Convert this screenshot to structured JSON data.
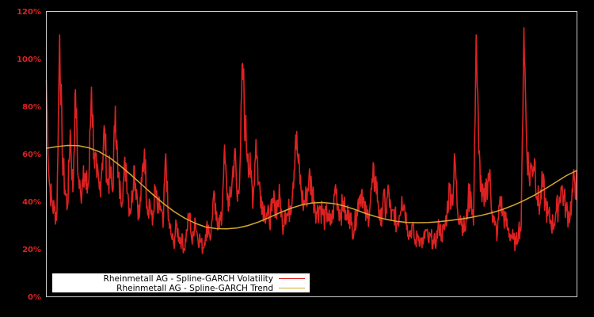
{
  "chart_data": {
    "type": "line",
    "title": "",
    "xlabel": "",
    "ylabel": "",
    "ylim": [
      0,
      120
    ],
    "y_ticks": [
      "0%",
      "20%",
      "40%",
      "60%",
      "80%",
      "100%",
      "120%"
    ],
    "grid": false,
    "legend_position": "lower left",
    "colors": {
      "background": "#000000",
      "axis_frame": "#cccccc",
      "tick_label": "#dd2222",
      "volatility": "#dd2222",
      "trend": "#d4a830",
      "legend_bg": "#ffffff"
    },
    "series": [
      {
        "name": "Rheinmetall AG - Spline-GARCH Volatility",
        "x_frac": [
          0,
          0.005,
          0.01,
          0.015,
          0.02,
          0.025,
          0.03,
          0.035,
          0.04,
          0.045,
          0.05,
          0.055,
          0.06,
          0.065,
          0.07,
          0.075,
          0.08,
          0.085,
          0.09,
          0.095,
          0.1,
          0.105,
          0.11,
          0.115,
          0.12,
          0.125,
          0.13,
          0.135,
          0.14,
          0.145,
          0.15,
          0.155,
          0.16,
          0.165,
          0.17,
          0.175,
          0.18,
          0.185,
          0.19,
          0.195,
          0.2,
          0.205,
          0.21,
          0.215,
          0.22,
          0.225,
          0.23,
          0.235,
          0.24,
          0.245,
          0.25,
          0.255,
          0.26,
          0.265,
          0.27,
          0.275,
          0.28,
          0.285,
          0.29,
          0.295,
          0.3,
          0.305,
          0.31,
          0.315,
          0.32,
          0.325,
          0.33,
          0.335,
          0.34,
          0.345,
          0.35,
          0.355,
          0.36,
          0.365,
          0.37,
          0.375,
          0.38,
          0.385,
          0.39,
          0.395,
          0.4,
          0.405,
          0.41,
          0.415,
          0.42,
          0.425,
          0.43,
          0.435,
          0.44,
          0.445,
          0.45,
          0.455,
          0.46,
          0.465,
          0.47,
          0.475,
          0.48,
          0.485,
          0.49,
          0.495,
          0.5,
          0.505,
          0.51,
          0.515,
          0.52,
          0.525,
          0.53,
          0.535,
          0.54,
          0.545,
          0.55,
          0.555,
          0.56,
          0.565,
          0.57,
          0.575,
          0.58,
          0.585,
          0.59,
          0.595,
          0.6,
          0.605,
          0.61,
          0.615,
          0.62,
          0.625,
          0.63,
          0.635,
          0.64,
          0.645,
          0.65,
          0.655,
          0.66,
          0.665,
          0.67,
          0.675,
          0.68,
          0.685,
          0.69,
          0.695,
          0.7,
          0.705,
          0.71,
          0.715,
          0.72,
          0.725,
          0.73,
          0.735,
          0.74,
          0.745,
          0.75,
          0.755,
          0.76,
          0.765,
          0.77,
          0.775,
          0.78,
          0.785,
          0.79,
          0.795,
          0.8,
          0.805,
          0.81,
          0.815,
          0.82,
          0.825,
          0.83,
          0.835,
          0.84,
          0.845,
          0.85,
          0.855,
          0.86,
          0.865,
          0.87,
          0.875,
          0.88,
          0.885,
          0.89,
          0.895,
          0.9,
          0.905,
          0.91,
          0.915,
          0.92,
          0.925,
          0.93,
          0.935,
          0.94,
          0.945,
          0.95,
          0.955,
          0.96,
          0.965,
          0.97,
          0.975,
          0.98,
          0.985,
          0.99,
          0.995,
          1
        ],
        "values": [
          91,
          50,
          40,
          36,
          35,
          110,
          60,
          45,
          38,
          70,
          44,
          87,
          50,
          42,
          55,
          45,
          48,
          88,
          60,
          50,
          45,
          56,
          70,
          47,
          52,
          44,
          80,
          50,
          42,
          48,
          56,
          40,
          37,
          55,
          45,
          33,
          48,
          62,
          38,
          40,
          30,
          46,
          35,
          38,
          29,
          60,
          32,
          26,
          22,
          30,
          25,
          24,
          20,
          28,
          35,
          22,
          33,
          25,
          24,
          20,
          26,
          30,
          25,
          42,
          32,
          33,
          30,
          60,
          45,
          38,
          48,
          62,
          40,
          55,
          98,
          70,
          60,
          50,
          42,
          66,
          48,
          42,
          37,
          35,
          32,
          36,
          40,
          38,
          42,
          30,
          36,
          34,
          38,
          48,
          68,
          56,
          45,
          38,
          42,
          50,
          46,
          40,
          35,
          38,
          36,
          32,
          35,
          30,
          34,
          47,
          38,
          35,
          40,
          32,
          36,
          30,
          28,
          36,
          42,
          45,
          35,
          33,
          38,
          48,
          50,
          40,
          30,
          42,
          35,
          45,
          32,
          36,
          30,
          34,
          42,
          38,
          30,
          26,
          30,
          22,
          26,
          24,
          22,
          28,
          23,
          25,
          22,
          24,
          30,
          26,
          28,
          35,
          46,
          40,
          58,
          36,
          34,
          30,
          28,
          40,
          44,
          30,
          110,
          60,
          44,
          38,
          48,
          52,
          36,
          30,
          26,
          42,
          35,
          32,
          28,
          26,
          24,
          22,
          28,
          30,
          113,
          65,
          50,
          55,
          58,
          42,
          38,
          48,
          40,
          34,
          32,
          30,
          35,
          38,
          46,
          42,
          36,
          34,
          40,
          50,
          45,
          36,
          38,
          78,
          55,
          48,
          44,
          40,
          45,
          52,
          48
        ]
      },
      {
        "name": "Rheinmetall AG - Spline-GARCH Trend",
        "x_frac": [
          0,
          0.02,
          0.04,
          0.06,
          0.08,
          0.1,
          0.12,
          0.14,
          0.16,
          0.18,
          0.2,
          0.22,
          0.24,
          0.26,
          0.28,
          0.3,
          0.32,
          0.34,
          0.36,
          0.38,
          0.4,
          0.42,
          0.44,
          0.46,
          0.48,
          0.5,
          0.52,
          0.54,
          0.56,
          0.58,
          0.6,
          0.62,
          0.64,
          0.66,
          0.68,
          0.7,
          0.72,
          0.74,
          0.76,
          0.78,
          0.8,
          0.82,
          0.84,
          0.86,
          0.88,
          0.9,
          0.92,
          0.94,
          0.96,
          0.98,
          1
        ],
        "values": [
          62.3,
          63.0,
          63.5,
          63.4,
          62.5,
          60.8,
          58.2,
          54.8,
          51.0,
          47.0,
          43.0,
          39.2,
          35.8,
          33.0,
          30.8,
          29.2,
          28.5,
          28.4,
          28.8,
          29.8,
          31.3,
          33.2,
          35.2,
          37.0,
          38.4,
          39.3,
          39.5,
          39.1,
          38.1,
          36.7,
          35.0,
          33.6,
          32.4,
          31.6,
          31.1,
          31.0,
          31.1,
          31.4,
          31.9,
          32.5,
          33.2,
          34.1,
          35.2,
          36.6,
          38.3,
          40.3,
          42.6,
          45.2,
          48.0,
          50.8,
          53.0
        ]
      }
    ]
  },
  "legend": {
    "items": [
      {
        "label": "Rheinmetall AG - Spline-GARCH Volatility",
        "color": "#dd2222"
      },
      {
        "label": "Rheinmetall AG - Spline-GARCH Trend",
        "color": "#d4a830"
      }
    ]
  }
}
